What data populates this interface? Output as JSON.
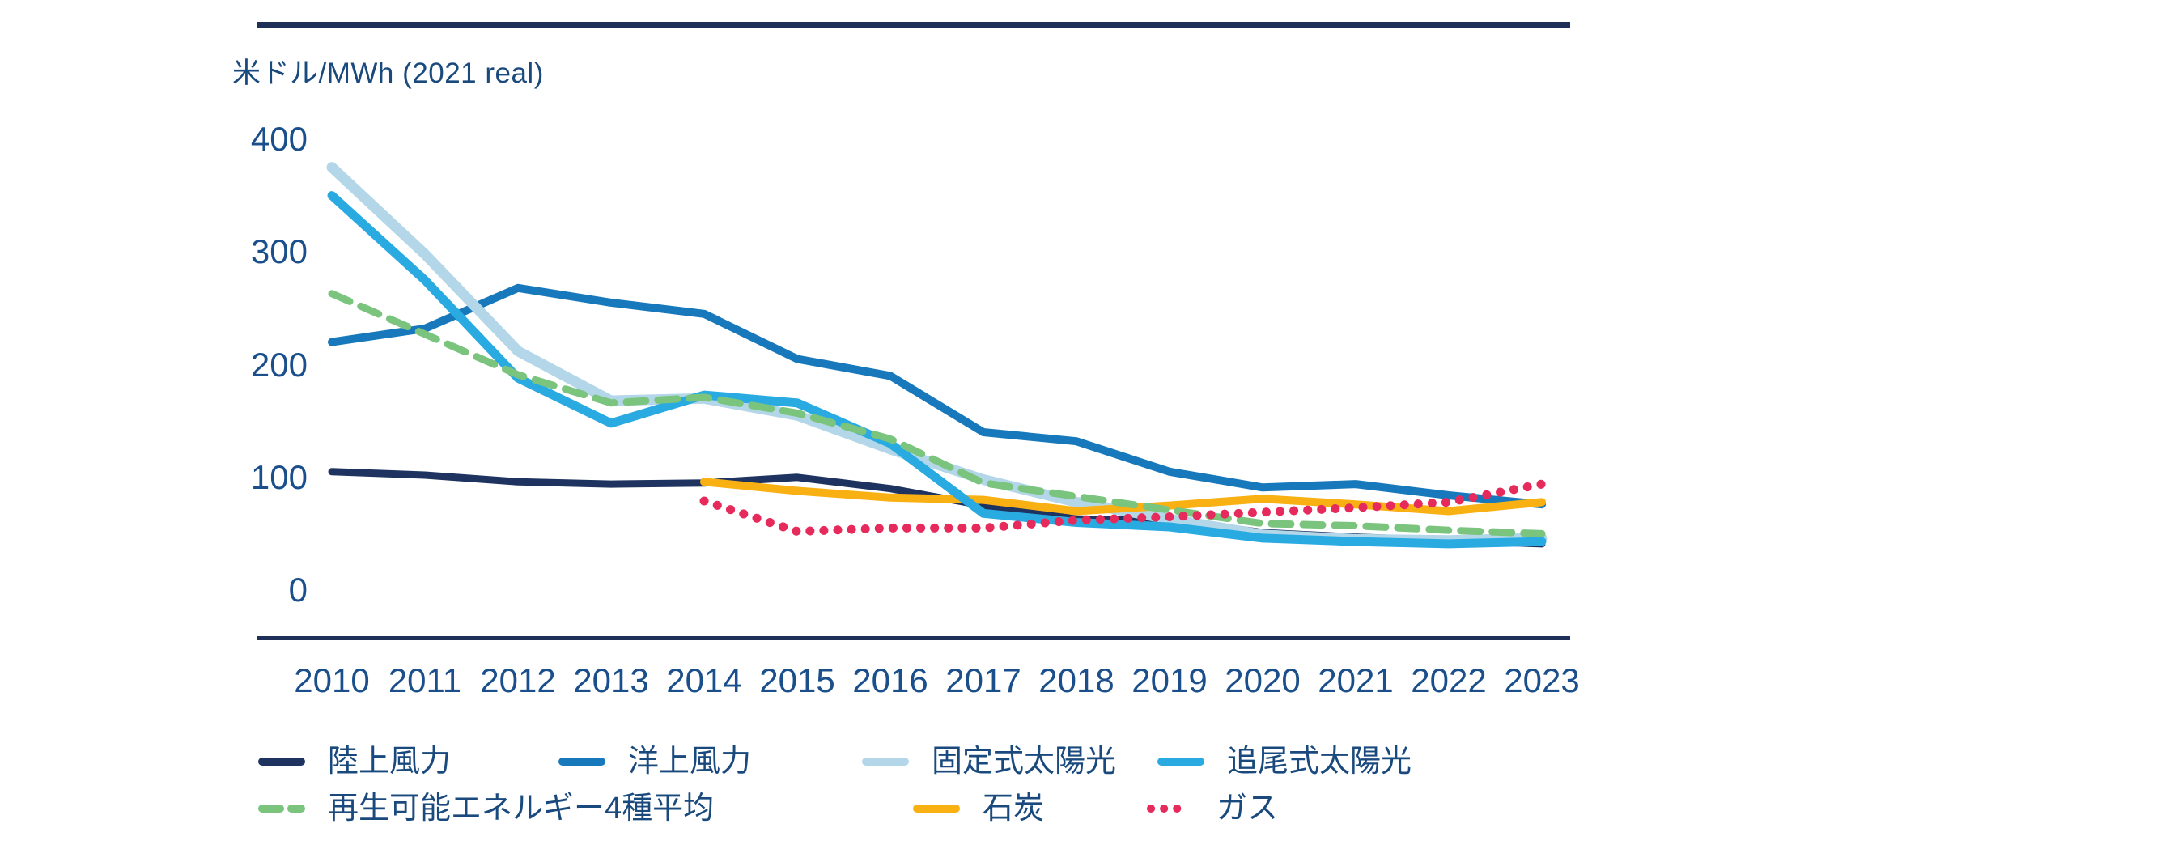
{
  "title": "米ドル/MWh (2021 real)",
  "palette": {
    "rule": "#1e3057",
    "axis_text": "#1a4f8c",
    "legend_text": "#1a4a7d",
    "background": "#ffffff"
  },
  "axis": {
    "yticks": [
      0,
      100,
      200,
      300,
      400
    ],
    "years": [
      2010,
      2011,
      2012,
      2013,
      2014,
      2015,
      2016,
      2017,
      2018,
      2019,
      2020,
      2021,
      2022,
      2023
    ]
  },
  "chart_data": {
    "type": "line",
    "title": "米ドル/MWh (2021 real)",
    "x": [
      2010,
      2011,
      2012,
      2013,
      2014,
      2015,
      2016,
      2017,
      2018,
      2019,
      2020,
      2021,
      2022,
      2023
    ],
    "xlabel": "",
    "ylabel": "米ドル/MWh (2021 real)",
    "ylim": [
      0,
      400
    ],
    "grid": false,
    "legend_position": "bottom",
    "series": [
      {
        "name": "陸上風力",
        "color": "#1e3360",
        "style": "solid",
        "width": 9,
        "z": 0,
        "x_start": 2010,
        "values": [
          105,
          102,
          96,
          94,
          95,
          100,
          90,
          75,
          63,
          62,
          51,
          47,
          44,
          41
        ]
      },
      {
        "name": "洋上風力",
        "color": "#1779bb",
        "style": "solid",
        "width": 10,
        "z": 1,
        "x_start": 2010,
        "values": [
          220,
          232,
          268,
          255,
          245,
          205,
          190,
          140,
          132,
          105,
          91,
          94,
          84,
          76
        ]
      },
      {
        "name": "固定式太陽光",
        "color": "#b3d7e8",
        "style": "solid",
        "width": 13,
        "z": 2,
        "x_start": 2010,
        "values": [
          375,
          298,
          212,
          168,
          170,
          155,
          125,
          98,
          78,
          63,
          49,
          45,
          44,
          46
        ]
      },
      {
        "name": "追尾式太陽光",
        "color": "#29abe2",
        "style": "solid",
        "width": 11,
        "z": 5,
        "x_start": 2010,
        "values": [
          350,
          275,
          188,
          148,
          173,
          166,
          130,
          68,
          60,
          56,
          46,
          43,
          41,
          43
        ]
      },
      {
        "name": "再生可能エネルギー4種平均",
        "color": "#7ac47e",
        "style": "dashed",
        "width": 9,
        "z": 6,
        "x_start": 2010,
        "values": [
          263,
          227,
          191,
          166,
          171,
          157,
          134,
          95,
          83,
          71,
          59,
          57,
          53,
          50
        ]
      },
      {
        "name": "石炭",
        "color": "#f9b013",
        "style": "solid",
        "width": 10,
        "z": 3,
        "x_start": 2014,
        "values": [
          96,
          88,
          82,
          80,
          70,
          75,
          81,
          76,
          70,
          78
        ]
      },
      {
        "name": "ガス",
        "color": "#e62a5b",
        "style": "dotted",
        "width": 11,
        "z": 7,
        "x_start": 2014,
        "values": [
          79,
          52,
          55,
          55,
          62,
          65,
          69,
          73,
          78,
          94
        ]
      }
    ]
  },
  "legend": {
    "items": [
      {
        "label": "陸上風力"
      },
      {
        "label": "洋上風力"
      },
      {
        "label": "固定式太陽光"
      },
      {
        "label": "追尾式太陽光"
      },
      {
        "label": "再生可能エネルギー4種平均"
      },
      {
        "label": "石炭"
      },
      {
        "label": "ガス"
      }
    ]
  }
}
